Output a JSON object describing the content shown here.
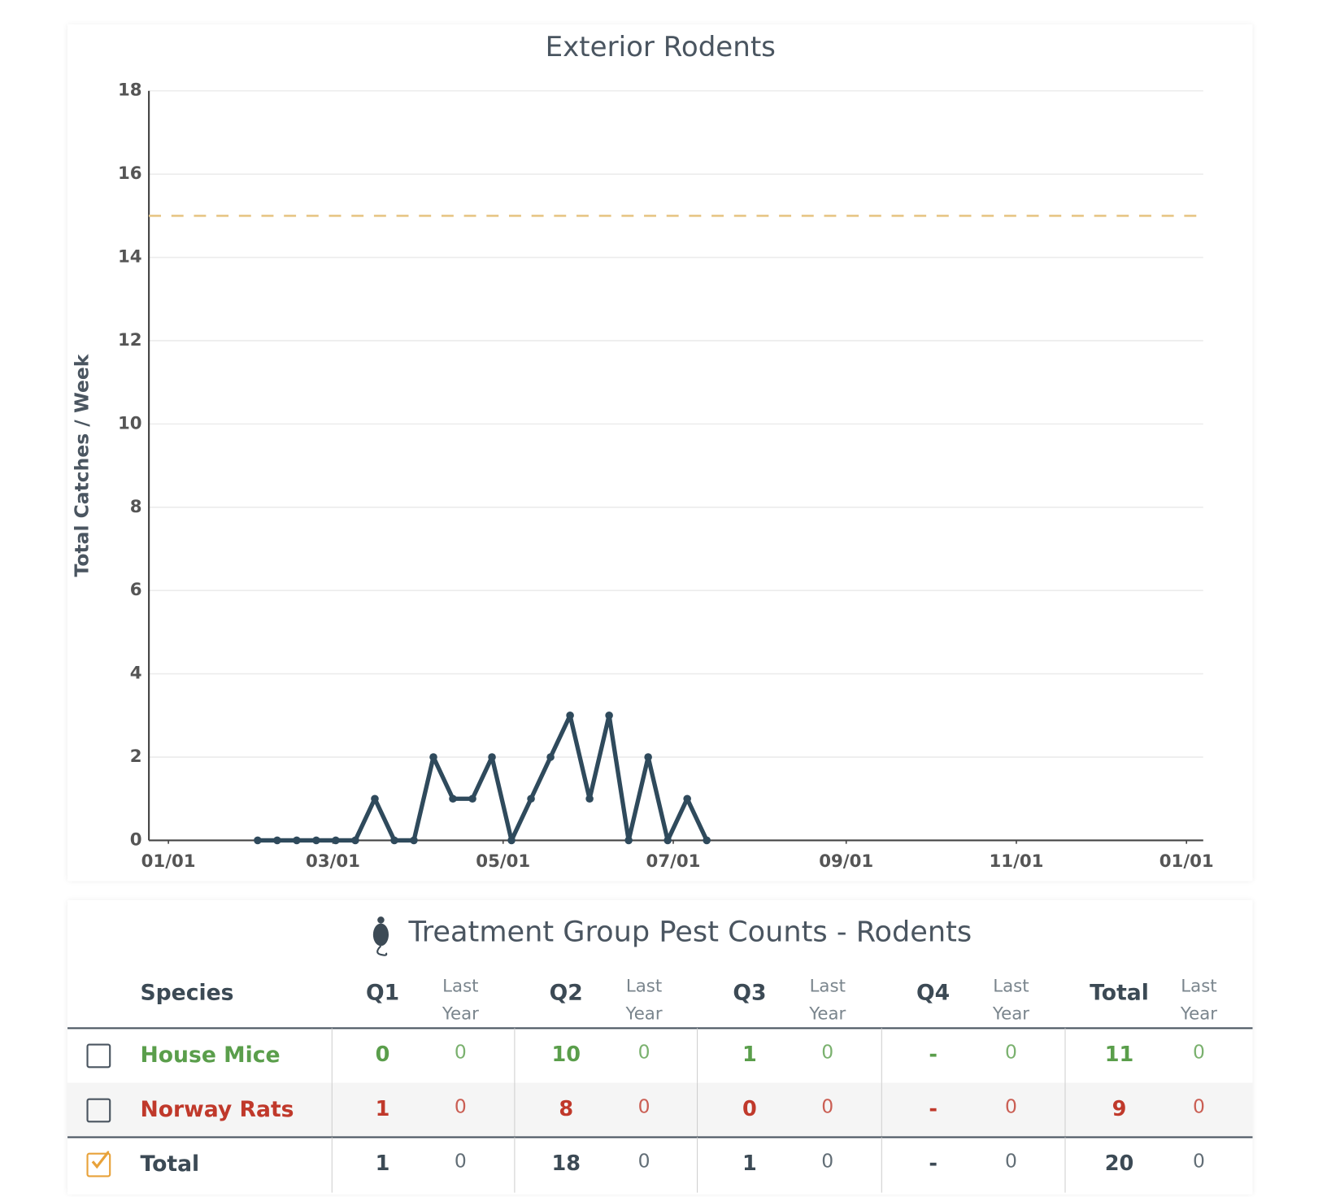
{
  "chart_data": {
    "type": "line",
    "title": "Exterior Rodents",
    "y_label": "Total Catches / Week",
    "x": [
      32,
      39,
      46,
      53,
      60,
      67,
      74,
      81,
      88,
      95,
      102,
      109,
      116,
      123,
      130,
      137,
      144,
      151,
      158,
      165,
      172,
      179,
      186,
      193
    ],
    "values": [
      0,
      0,
      0,
      0,
      0,
      0,
      1,
      0,
      0,
      2,
      1,
      1,
      2,
      0,
      1,
      2,
      3,
      1,
      3,
      0,
      2,
      0,
      1,
      0
    ],
    "color": "#2f4a5c",
    "reference_line": {
      "value": 15,
      "color": "#e8c88a"
    },
    "xlim": [
      -7,
      371
    ],
    "xticks": [
      {
        "value": 0,
        "label": "01/01"
      },
      {
        "value": 59,
        "label": "03/01"
      },
      {
        "value": 120,
        "label": "05/01"
      },
      {
        "value": 181,
        "label": "07/01"
      },
      {
        "value": 243,
        "label": "09/01"
      },
      {
        "value": 304,
        "label": "11/01"
      },
      {
        "value": 365,
        "label": "01/01"
      }
    ],
    "ylim": [
      0,
      18
    ],
    "yticks": [
      0,
      2,
      4,
      6,
      8,
      10,
      12,
      14,
      16,
      18
    ],
    "grid": true
  },
  "table": {
    "title": "Treatment Group Pest Counts - Rodents",
    "columns": [
      "Species",
      "Q1",
      "Last Year",
      "Q2",
      "Last Year",
      "Q3",
      "Last Year",
      "Q4",
      "Last Year",
      "Total",
      "Last Year"
    ],
    "rows": [
      {
        "species": "House Mice",
        "color": "#5a9e4b",
        "checked": false,
        "cells": [
          0,
          0,
          10,
          0,
          1,
          0,
          "-",
          0,
          11,
          0
        ]
      },
      {
        "species": "Norway Rats",
        "color": "#c0392b",
        "checked": false,
        "cells": [
          1,
          0,
          8,
          0,
          0,
          0,
          "-",
          0,
          9,
          0
        ]
      },
      {
        "species": "Total",
        "color": "#3c4a55",
        "checked": true,
        "cells": [
          1,
          0,
          18,
          0,
          1,
          0,
          "-",
          0,
          20,
          0
        ]
      }
    ]
  }
}
